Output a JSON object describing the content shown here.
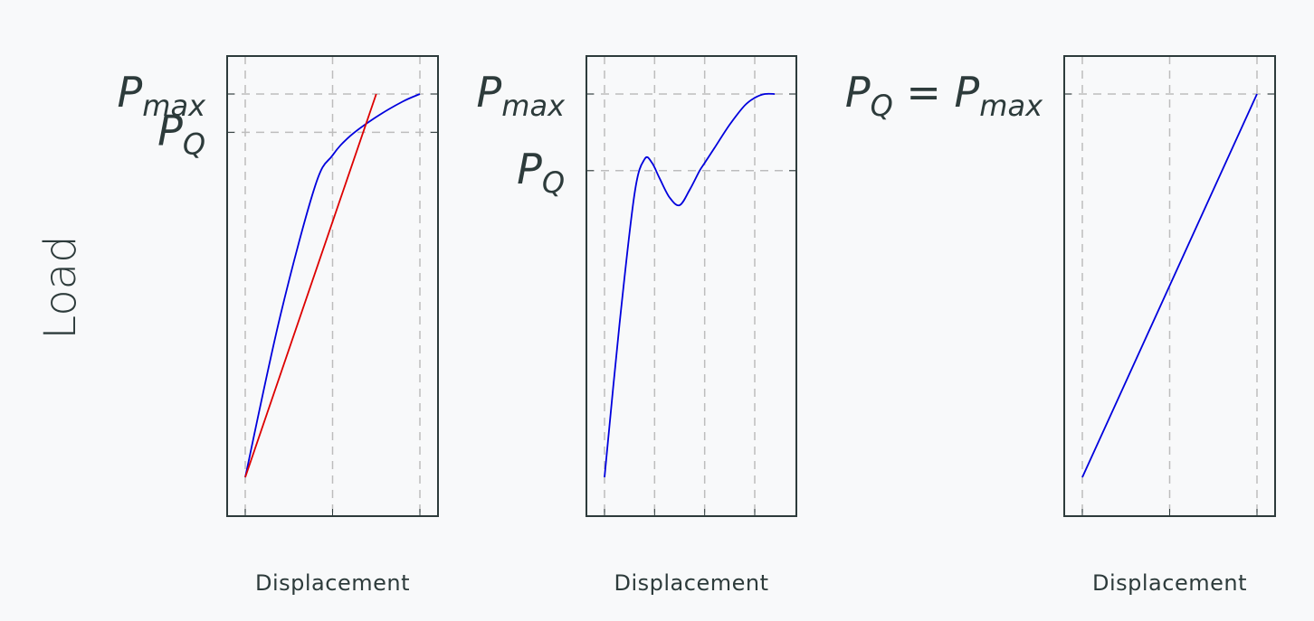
{
  "figure": {
    "ylabel": "Load",
    "background": "#f8f9fa",
    "colors": {
      "curve": "#0000dd",
      "secant": "#dd0000",
      "axis": "#2d3b3b",
      "grid": "#bdbdbd"
    }
  },
  "chart_data": [
    {
      "type": "line",
      "xlabel": "Displacement",
      "grid": true,
      "xlim": [
        0,
        2.2
      ],
      "ylim": [
        -0.1,
        1.1
      ],
      "x_gridlines": [
        0,
        1,
        2
      ],
      "y_levels": [
        {
          "name": "P_max",
          "value": 1.0,
          "base": "P",
          "sub": "max"
        },
        {
          "name": "P_Q",
          "value": 0.9,
          "base": "P",
          "sub": "Q"
        }
      ],
      "series": [
        {
          "role": "curve",
          "color": "#0000dd",
          "x": [
            0.0,
            0.4,
            0.8,
            1.0,
            1.2,
            1.5,
            1.8,
            2.0
          ],
          "y": [
            0.0,
            0.42,
            0.76,
            0.84,
            0.89,
            0.94,
            0.98,
            1.0
          ]
        },
        {
          "role": "secant",
          "color": "#dd0000",
          "x": [
            0.0,
            1.5
          ],
          "y": [
            0.0,
            1.0
          ]
        }
      ]
    },
    {
      "type": "line",
      "xlabel": "Displacement",
      "grid": true,
      "xlim": [
        0,
        3.5
      ],
      "ylim": [
        -0.1,
        1.1
      ],
      "x_gridlines": [
        0,
        1,
        2,
        3
      ],
      "y_levels": [
        {
          "name": "P_max",
          "value": 1.0,
          "base": "P",
          "sub": "max"
        },
        {
          "name": "P_Q",
          "value": 0.8,
          "base": "P",
          "sub": "Q"
        }
      ],
      "series": [
        {
          "role": "curve",
          "color": "#0000dd",
          "x": [
            0.0,
            0.3,
            0.6,
            0.8,
            0.95,
            1.1,
            1.3,
            1.5,
            1.7,
            1.9,
            2.0,
            2.2,
            2.5,
            2.8,
            3.0,
            3.2,
            3.4
          ],
          "y": [
            0.0,
            0.4,
            0.74,
            0.83,
            0.82,
            0.78,
            0.73,
            0.71,
            0.75,
            0.8,
            0.82,
            0.86,
            0.92,
            0.97,
            0.99,
            1.0,
            1.0
          ]
        }
      ]
    },
    {
      "type": "line",
      "xlabel": "Displacement",
      "grid": true,
      "xlim": [
        0,
        2.2
      ],
      "ylim": [
        -0.1,
        1.1
      ],
      "x_gridlines": [
        0,
        1,
        2
      ],
      "y_levels": [
        {
          "name": "P_Q = P_max",
          "value": 1.0,
          "base": "P",
          "sub": "Q",
          "suffix_base": " = P",
          "suffix_sub": "max"
        }
      ],
      "series": [
        {
          "role": "curve",
          "color": "#0000dd",
          "x": [
            0.0,
            2.0
          ],
          "y": [
            0.0,
            1.0
          ]
        }
      ]
    }
  ]
}
